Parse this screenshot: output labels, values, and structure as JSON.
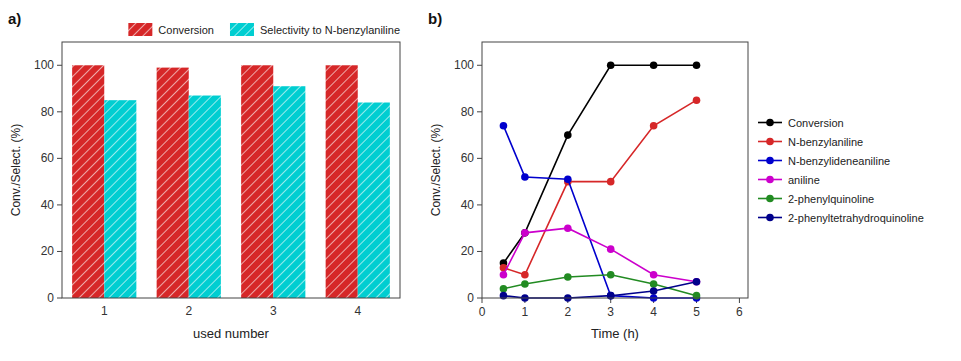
{
  "chart_data": [
    {
      "type": "bar",
      "title": "a)",
      "xlabel": "used number",
      "ylabel": "Conv./Select. (%)",
      "categories": [
        "1",
        "2",
        "3",
        "4"
      ],
      "series": [
        {
          "name": "Conversion",
          "color": "#d62728",
          "values": [
            100,
            99,
            100,
            100
          ]
        },
        {
          "name": "Selectivity to N-benzylaniline",
          "color": "#00ced1",
          "values": [
            85,
            87,
            91,
            84
          ]
        }
      ],
      "ylim": [
        0,
        110
      ],
      "yticks": [
        0,
        20,
        40,
        60,
        80,
        100
      ],
      "grid": false,
      "legend": "upper right"
    },
    {
      "type": "line",
      "title": "b)",
      "xlabel": "Time (h)",
      "ylabel": "Conv./Select. (%)",
      "x": [
        0.5,
        1,
        2,
        3,
        4,
        5
      ],
      "series": [
        {
          "name": "Conversion",
          "color": "#000000",
          "values": [
            15,
            28,
            70,
            100,
            100,
            100
          ]
        },
        {
          "name": "N-benzylaniline",
          "color": "#d62728",
          "values": [
            13,
            10,
            50,
            50,
            74,
            85
          ]
        },
        {
          "name": "N-benzylideneaniline",
          "color": "#0000cd",
          "values": [
            74,
            52,
            51,
            1,
            0,
            0
          ]
        },
        {
          "name": "aniline",
          "color": "#cc00cc",
          "values": [
            10,
            28,
            30,
            21,
            10,
            7
          ]
        },
        {
          "name": "2-phenylquinoline",
          "color": "#228b22",
          "values": [
            4,
            6,
            9,
            10,
            6,
            1
          ]
        },
        {
          "name": "2-phenyltetrahydroquinoline",
          "color": "#00008b",
          "values": [
            1,
            0,
            0,
            1,
            3,
            7
          ]
        }
      ],
      "xlim": [
        0,
        6.2
      ],
      "xticks": [
        0,
        1,
        2,
        3,
        4,
        5,
        6
      ],
      "ylim": [
        0,
        110
      ],
      "yticks": [
        0,
        20,
        40,
        60,
        80,
        100
      ],
      "marker": "circle",
      "grid": false,
      "legend": "right"
    }
  ]
}
